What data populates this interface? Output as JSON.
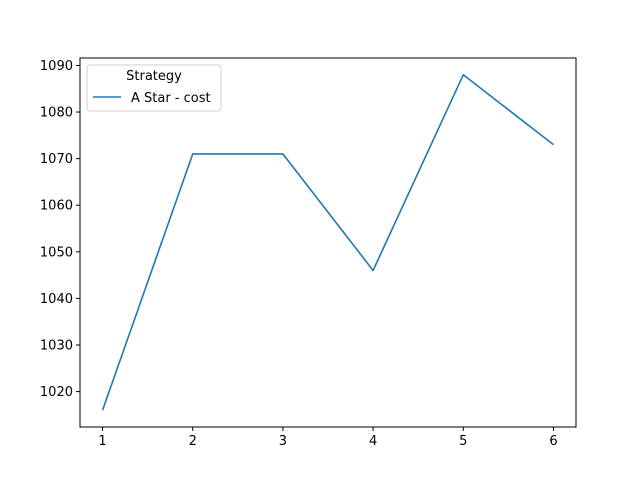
{
  "chart_data": {
    "type": "line",
    "title": "",
    "xlabel": "",
    "ylabel": "",
    "x": [
      1,
      2,
      3,
      4,
      5,
      6
    ],
    "series": [
      {
        "name": "A Star - cost",
        "values": [
          1016,
          1071,
          1071,
          1046,
          1088,
          1073
        ],
        "color": "#1f77b4"
      }
    ],
    "x_ticks": [
      "1",
      "2",
      "3",
      "4",
      "5",
      "6"
    ],
    "y_ticks": [
      "1020",
      "1030",
      "1040",
      "1050",
      "1060",
      "1070",
      "1080",
      "1090"
    ],
    "xlim": [
      0.75,
      6.25
    ],
    "ylim": [
      1012.4,
      1091.6
    ],
    "legend": {
      "title": "Strategy",
      "placement": "top-left"
    }
  }
}
